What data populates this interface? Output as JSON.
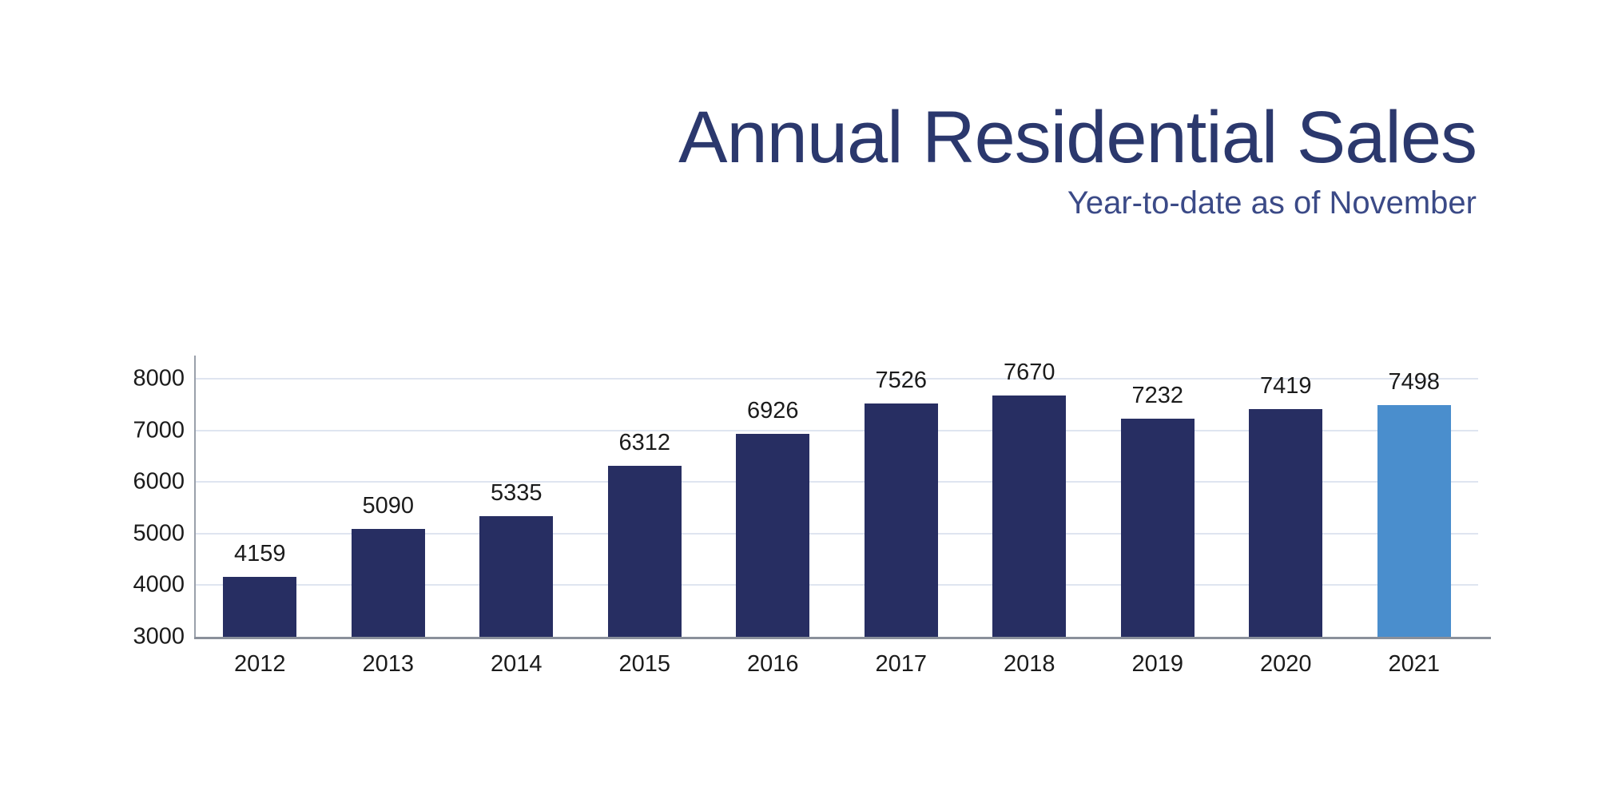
{
  "header": {
    "title": "Annual Residential Sales",
    "subtitle": "Year-to-date as of November"
  },
  "colors": {
    "title": "#2b386d",
    "subtitle": "#3b4a87",
    "bar": "#272e62",
    "bar_highlight": "#4a8ecd",
    "gridline": "#dfe5f0",
    "y_axis": "#9aa0ab",
    "x_axis": "#8a909b",
    "label": "#1b1b1b",
    "background": "#ffffff"
  },
  "chart_data": {
    "type": "bar",
    "title": "Annual Residential Sales",
    "subtitle": "Year-to-date as of November",
    "categories": [
      "2012",
      "2013",
      "2014",
      "2015",
      "2016",
      "2017",
      "2018",
      "2019",
      "2020",
      "2021"
    ],
    "values": [
      4159,
      5090,
      5335,
      6312,
      6926,
      7526,
      7670,
      7232,
      7419,
      7498
    ],
    "highlight_index": 9,
    "xlabel": "",
    "ylabel": "",
    "ylim": [
      3000,
      8450
    ],
    "yticks": [
      3000,
      4000,
      5000,
      6000,
      7000,
      8000
    ],
    "grid": true,
    "data_labels": true,
    "legend": "none"
  }
}
